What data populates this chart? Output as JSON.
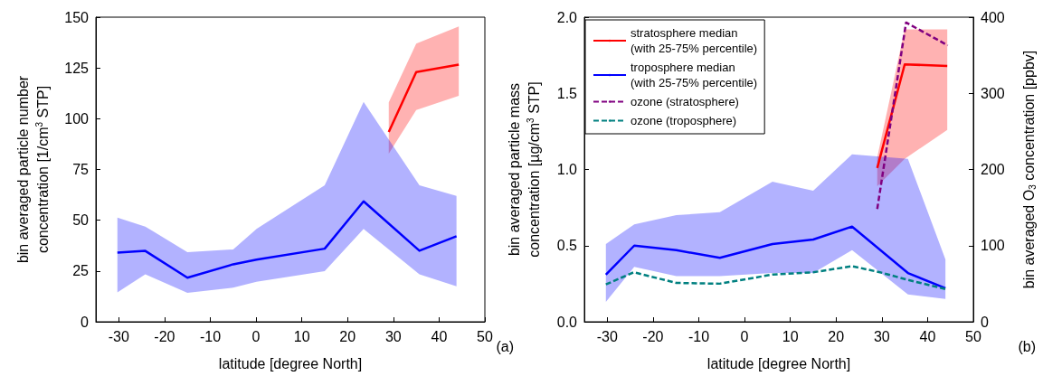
{
  "chart_data": [
    {
      "type": "line",
      "xlabel": "latitude [degree North]",
      "ylabel": "bin averaged particle number\nconcentration [1/cm$^{3}$ STP]",
      "xlim": [
        -35,
        50
      ],
      "xticks": [
        -30,
        -20,
        -10,
        0,
        10,
        20,
        30,
        40,
        50
      ],
      "ylim": [
        0,
        150
      ],
      "yticks": [
        0,
        25,
        50,
        75,
        100,
        125,
        150
      ],
      "grid": false,
      "legend": false,
      "marker": "none",
      "line_style": "solid",
      "annotations": [
        "(a)"
      ],
      "series": [
        {
          "color": "#ff0000",
          "x": [
            29,
            35,
            44.3
          ],
          "values": [
            93.5,
            123,
            126.6
          ],
          "lower": [
            82.8,
            104.3,
            111.3
          ],
          "upper": [
            108,
            137,
            145.4
          ]
        },
        {
          "color": "#0000ff",
          "x": [
            -30.3,
            -24.2,
            -15,
            -5,
            0.1,
            15,
            23.5,
            35.7,
            43.8
          ],
          "values": [
            34.1,
            34.9,
            21.7,
            28.3,
            30.6,
            36,
            59.3,
            35,
            42.1
          ],
          "lower": [
            14.5,
            23.4,
            14.2,
            16.8,
            19.7,
            24.9,
            45.7,
            23.4,
            17.5
          ],
          "upper": [
            51.3,
            46.9,
            34.3,
            35.6,
            45.7,
            67.2,
            108.3,
            67.2,
            62
          ]
        }
      ]
    },
    {
      "type": "line",
      "xlabel": "latitude [degree North]",
      "ylabel": "bin averaged particle mass\nconcentration [µg/cm$^{3}$ STP]",
      "y2label": "bin averaged O$_{3}$ concentration [ppbv]",
      "xlim": [
        -35,
        50
      ],
      "xticks": [
        -30,
        -20,
        -10,
        0,
        10,
        20,
        30,
        40,
        50
      ],
      "ylim": [
        0,
        2
      ],
      "yticks": [
        {
          "value": 0,
          "label": "0.0"
        },
        0.5,
        {
          "value": 1,
          "label": "1.0"
        },
        1.5,
        {
          "value": 2,
          "label": "2.0"
        }
      ],
      "y2lim": [
        0,
        400
      ],
      "y2ticks": [
        0,
        100,
        200,
        300,
        400
      ],
      "grid": false,
      "legend": "top left",
      "marker": "none",
      "annotations": [
        "(b)"
      ],
      "series": [
        {
          "name": "stratosphere median\n(with 25-75% percentile)",
          "color": "#ff0000",
          "line_style": "solid",
          "x": [
            29,
            35,
            44.3
          ],
          "values": [
            1.01,
            1.69,
            1.68
          ],
          "lower": [
            0.89,
            1.07,
            1.26
          ],
          "upper": [
            1.08,
            1.92,
            1.92
          ]
        },
        {
          "name": "troposphere median\n(with 25-75% percentile)",
          "color": "#0000ff",
          "line_style": "solid",
          "x": [
            -30.3,
            -24.1,
            -14.9,
            -5.4,
            6.1,
            15,
            23.5,
            35.7,
            43.9
          ],
          "values": [
            0.31,
            0.5,
            0.47,
            0.42,
            0.51,
            0.54,
            0.625,
            0.32,
            0.22
          ],
          "lower": [
            0.13,
            0.36,
            0.3,
            0.3,
            0.32,
            0.32,
            0.47,
            0.18,
            0.15
          ],
          "upper": [
            0.51,
            0.64,
            0.7,
            0.72,
            0.92,
            0.86,
            1.1,
            1.07,
            0.41
          ]
        },
        {
          "name": "ozone (stratosphere)",
          "color": "#800080",
          "line_style": "dashed",
          "axis": "y2",
          "x": [
            29,
            35.3,
            44.4
          ],
          "values": [
            148,
            393,
            363
          ]
        },
        {
          "name": "ozone (troposphere)",
          "color": "#008080",
          "line_style": "dashed",
          "axis": "y2",
          "x": [
            -30.3,
            -24.2,
            -14.9,
            -5.4,
            6.1,
            15,
            23.5,
            29.6,
            35.7,
            43.9
          ],
          "values": [
            49,
            65,
            51,
            50,
            62,
            65,
            73,
            65,
            55,
            43
          ]
        }
      ]
    }
  ]
}
